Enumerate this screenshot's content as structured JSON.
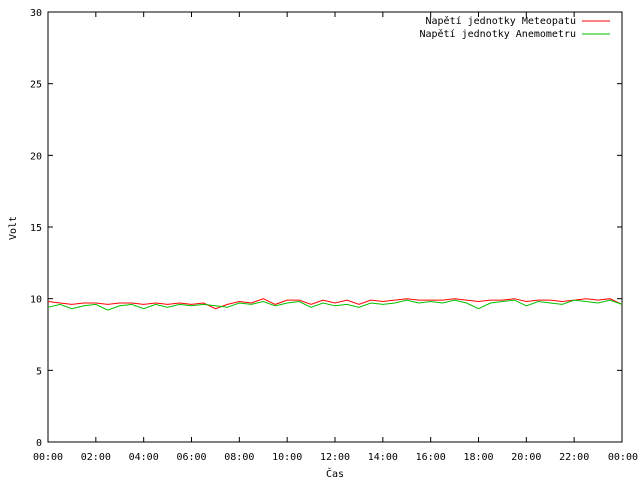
{
  "chart_data": {
    "type": "line",
    "title": "",
    "xlabel": "Čas",
    "ylabel": "Volt",
    "ylim": [
      0,
      30
    ],
    "y_ticks": [
      "0",
      "5",
      "10",
      "15",
      "20",
      "25",
      "30"
    ],
    "x_ticks": [
      "00:00",
      "02:00",
      "04:00",
      "06:00",
      "08:00",
      "10:00",
      "12:00",
      "14:00",
      "16:00",
      "18:00",
      "20:00",
      "22:00",
      "00:00"
    ],
    "grid": false,
    "legend_position": "top-right",
    "x_hours": [
      0,
      0.5,
      1,
      1.5,
      2,
      2.5,
      3,
      3.5,
      4,
      4.5,
      5,
      5.5,
      6,
      6.5,
      7,
      7.5,
      8,
      8.5,
      9,
      9.5,
      10,
      10.5,
      11,
      11.5,
      12,
      12.5,
      13,
      13.5,
      14,
      14.5,
      15,
      15.5,
      16,
      16.5,
      17,
      17.5,
      18,
      18.5,
      19,
      19.5,
      20,
      20.5,
      21,
      21.5,
      22,
      22.5,
      23,
      23.5,
      24
    ],
    "series": [
      {
        "name": "Napětí jednotky Meteopatu",
        "color": "#ff0000",
        "values": [
          9.8,
          9.7,
          9.6,
          9.7,
          9.7,
          9.6,
          9.7,
          9.7,
          9.6,
          9.7,
          9.6,
          9.7,
          9.6,
          9.7,
          9.3,
          9.6,
          9.8,
          9.7,
          10.0,
          9.6,
          9.9,
          9.9,
          9.6,
          9.9,
          9.7,
          9.9,
          9.6,
          9.9,
          9.8,
          9.9,
          10.0,
          9.9,
          9.9,
          9.9,
          10.0,
          9.9,
          9.8,
          9.9,
          9.9,
          10.0,
          9.8,
          9.9,
          9.9,
          9.8,
          9.9,
          10.0,
          9.9,
          10.0,
          9.6
        ]
      },
      {
        "name": "Napětí jednotky Anemometru",
        "color": "#00c000",
        "values": [
          9.4,
          9.6,
          9.3,
          9.5,
          9.6,
          9.2,
          9.5,
          9.6,
          9.3,
          9.6,
          9.4,
          9.6,
          9.5,
          9.6,
          9.5,
          9.4,
          9.7,
          9.6,
          9.8,
          9.5,
          9.7,
          9.8,
          9.4,
          9.7,
          9.5,
          9.6,
          9.4,
          9.7,
          9.6,
          9.7,
          9.9,
          9.7,
          9.8,
          9.7,
          9.9,
          9.7,
          9.3,
          9.7,
          9.8,
          9.9,
          9.5,
          9.8,
          9.7,
          9.6,
          9.9,
          9.8,
          9.7,
          9.9,
          9.6
        ]
      }
    ]
  }
}
